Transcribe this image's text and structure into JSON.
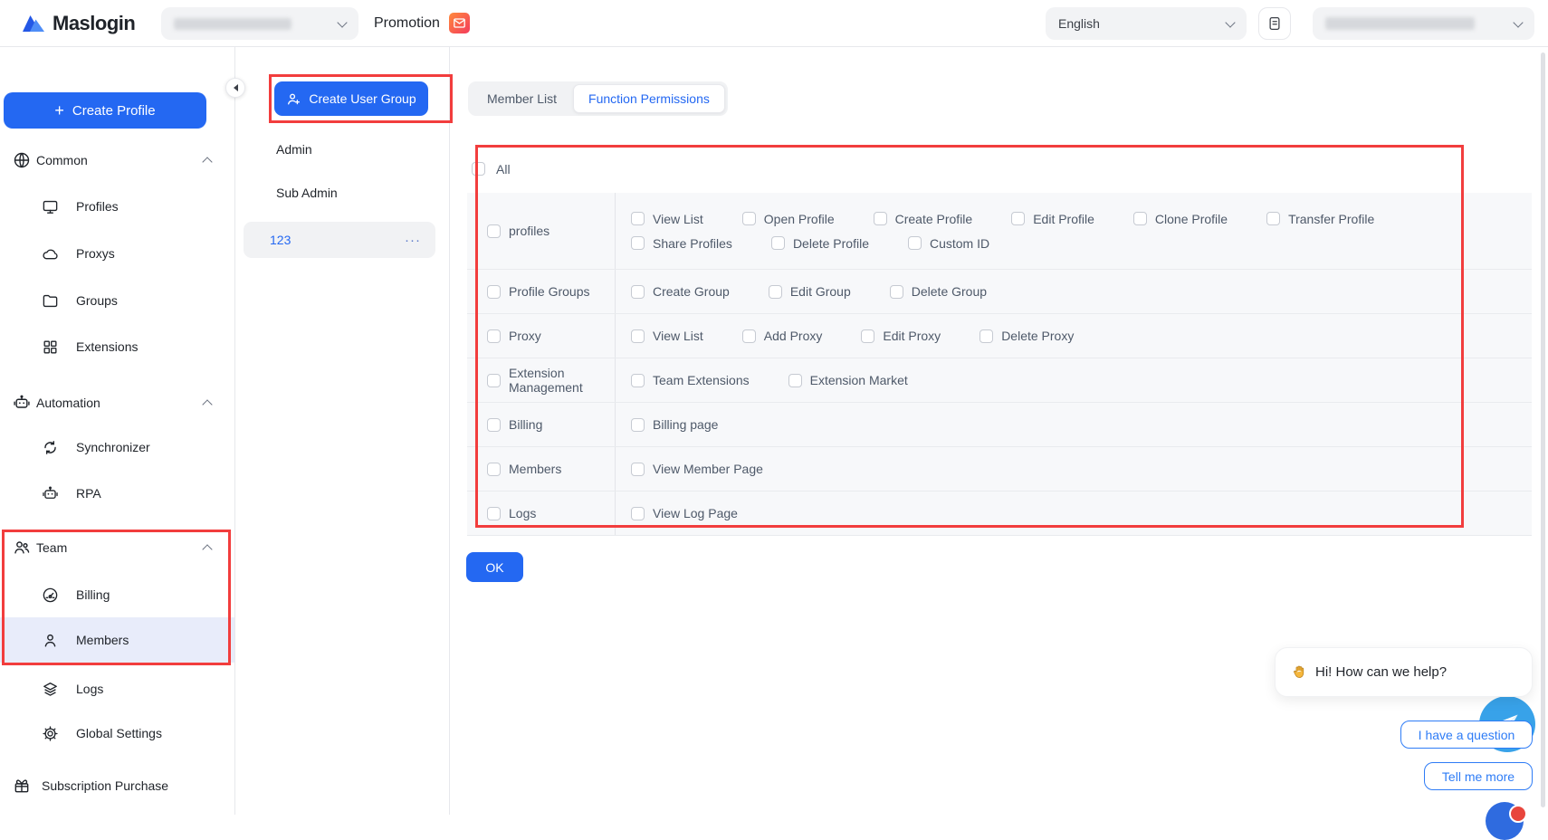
{
  "header": {
    "brand": "Maslogin",
    "promotion_label": "Promotion",
    "language_selected": "English"
  },
  "sidebar": {
    "create_profile_button": "Create Profile",
    "plus_glyph": "+",
    "sections": {
      "common": {
        "label": "Common",
        "items": [
          "Profiles",
          "Proxys",
          "Groups",
          "Extensions"
        ]
      },
      "automation": {
        "label": "Automation",
        "items": [
          "Synchronizer",
          "RPA"
        ]
      },
      "team": {
        "label": "Team",
        "items": [
          "Billing",
          "Members",
          "Logs",
          "Global Settings"
        ]
      }
    },
    "selected_item": "Members",
    "subscription_purchase": "Subscription Purchase"
  },
  "groups_panel": {
    "create_button": "Create User Group",
    "groups": [
      "Admin",
      "Sub Admin",
      "123"
    ],
    "selected_group": "123",
    "more_glyph": "···"
  },
  "tabs": {
    "member_list": "Member List",
    "function_permissions": "Function Permissions",
    "active": "Function Permissions"
  },
  "permissions": {
    "all_label": "All",
    "rows": [
      {
        "category": "profiles",
        "lines": [
          [
            "View List",
            "Open Profile",
            "Create Profile",
            "Edit Profile",
            "Clone Profile",
            "Transfer Profile"
          ],
          [
            "Share Profiles",
            "Delete Profile",
            "Custom ID"
          ]
        ]
      },
      {
        "category": "Profile Groups",
        "lines": [
          [
            "Create Group",
            "Edit Group",
            "Delete Group"
          ]
        ]
      },
      {
        "category": "Proxy",
        "lines": [
          [
            "View List",
            "Add Proxy",
            "Edit Proxy",
            "Delete Proxy"
          ]
        ]
      },
      {
        "category": "Extension Management",
        "lines": [
          [
            "Team Extensions",
            "Extension Market"
          ]
        ]
      },
      {
        "category": "Billing",
        "lines": [
          [
            "Billing page"
          ]
        ]
      },
      {
        "category": "Members",
        "lines": [
          [
            "View Member Page"
          ]
        ]
      },
      {
        "category": "Logs",
        "lines": [
          [
            "View Log Page"
          ]
        ]
      }
    ],
    "ok_button": "OK",
    "checkboxes_checked": false
  },
  "chat": {
    "greeting": "Hi! How can we help?",
    "quick_replies": [
      "I have a question",
      "Tell me more"
    ]
  },
  "colors": {
    "accent_blue": "#2468f2",
    "annotation_red": "#f23d3d",
    "chat_blue": "#38a2e9",
    "selected_sidebar_bg": "#e8ecfa",
    "row_bg": "#f7f8fa",
    "promotion_gradient": [
      "#ff8a3c",
      "#f43b5c"
    ]
  }
}
